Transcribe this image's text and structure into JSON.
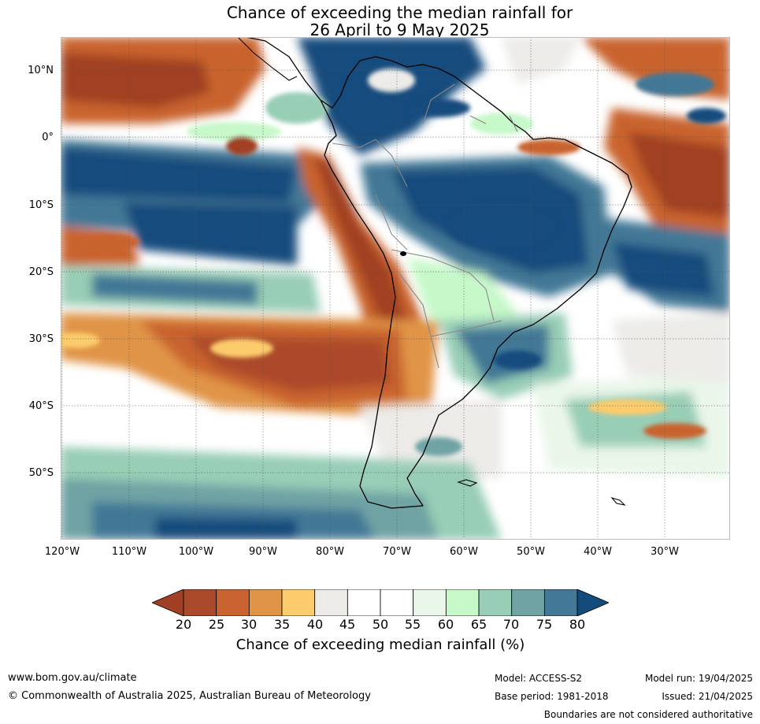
{
  "title": {
    "line1": "Chance of exceeding the median rainfall for",
    "line2": "26 April to 9 May 2025"
  },
  "map": {
    "lat_labels": [
      "10°N",
      "0°",
      "10°S",
      "20°S",
      "30°S",
      "40°S",
      "50°S"
    ],
    "lon_labels": [
      "120°W",
      "110°W",
      "100°W",
      "90°W",
      "80°W",
      "70°W",
      "60°W",
      "50°W",
      "40°W",
      "30°W"
    ]
  },
  "colorbar": {
    "ticks": [
      "20",
      "25",
      "30",
      "35",
      "40",
      "45",
      "50",
      "55",
      "60",
      "65",
      "70",
      "75",
      "80"
    ],
    "colors": [
      "#a13f24",
      "#ab4a2b",
      "#c9632f",
      "#e09447",
      "#fccc6c",
      "#ecebe8",
      "#ffffff",
      "#ffffff",
      "#eaf6ea",
      "#c6f8c9",
      "#98cdb6",
      "#6fa3a4",
      "#437896",
      "#144b7d"
    ],
    "label": "Chance of exceeding median rainfall (%)"
  },
  "footer": {
    "website": "www.bom.gov.au/climate",
    "copyright": "© Commonwealth of Australia 2025, Australian Bureau of Meteorology",
    "model": "Model: ACCESS-S2",
    "base_period": "Base period: 1981-2018",
    "model_run": "Model run: 19/04/2025",
    "issued": "Issued: 21/04/2025",
    "disclaimer": "Boundaries are not considered authoritative"
  }
}
